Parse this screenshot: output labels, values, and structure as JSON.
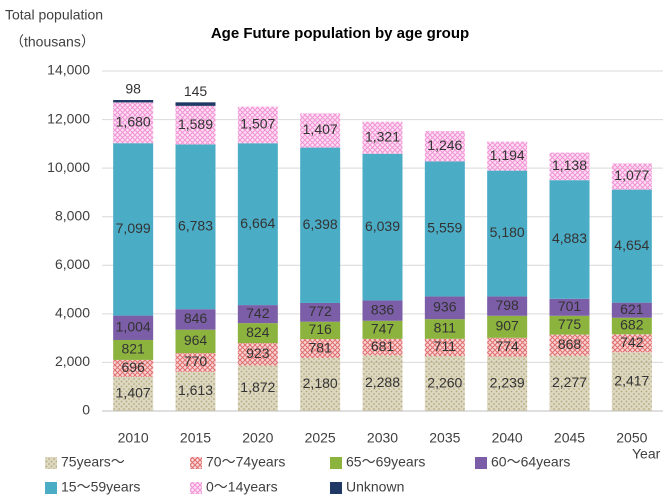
{
  "chart_data": {
    "type": "stacked_bar",
    "title": "Age Future population by age group",
    "ylabel": "Total population",
    "ylabel_unit": "（thousans）",
    "xlabel": "Year",
    "categories": [
      "2010",
      "2015",
      "2020",
      "2025",
      "2030",
      "2035",
      "2040",
      "2045",
      "2050"
    ],
    "series": [
      {
        "name": "75years〜",
        "color": "#b5a878",
        "hatch": "dots",
        "values": [
          1407,
          1613,
          1872,
          2180,
          2288,
          2260,
          2239,
          2277,
          2417
        ],
        "value_labels": [
          "1,407",
          "1,613",
          "1,872",
          "2,180",
          "2,288",
          "2,260",
          "2,239",
          "2,277",
          "2,417"
        ]
      },
      {
        "name": "70〜74years",
        "color": "#e06c6c",
        "hatch": "cross",
        "values": [
          696,
          770,
          923,
          781,
          681,
          711,
          774,
          868,
          742
        ]
      },
      {
        "name": "65〜69years",
        "color": "#8db33f",
        "values": [
          821,
          964,
          824,
          716,
          747,
          811,
          907,
          775,
          682
        ]
      },
      {
        "name": "60〜64years",
        "color": "#7b5ea7",
        "values": [
          1004,
          846,
          742,
          772,
          836,
          936,
          798,
          701,
          621
        ],
        "value_labels": [
          "1,004",
          "846",
          "742",
          "772",
          "836",
          "936",
          "798",
          "701",
          "621"
        ]
      },
      {
        "name": "15〜59years",
        "color": "#4bacc6",
        "values": [
          7099,
          6783,
          6664,
          6398,
          6039,
          5559,
          5180,
          4883,
          4654
        ],
        "value_labels": [
          "7,099",
          "6,783",
          "6,664",
          "6,398",
          "6,039",
          "5,559",
          "5,180",
          "4,883",
          "4,654"
        ]
      },
      {
        "name": "0〜14years",
        "color": "#f291d4",
        "hatch": "cross",
        "values": [
          1680,
          1589,
          1507,
          1407,
          1321,
          1246,
          1194,
          1138,
          1077
        ],
        "value_labels": [
          "1,680",
          "1,589",
          "1,507",
          "1,407",
          "1,321",
          "1,246",
          "1,194",
          "1,138",
          "1,077"
        ]
      },
      {
        "name": "Unknown",
        "color": "#1f3864",
        "values": [
          98,
          145,
          null,
          null,
          null,
          null,
          null,
          null,
          null
        ]
      }
    ],
    "ylim": [
      0,
      14000
    ],
    "yticks": [
      0,
      {
        "value": 2000,
        "label": "2,000"
      },
      {
        "value": 4000,
        "label": "4,000"
      },
      {
        "value": 6000,
        "label": "6,000"
      },
      {
        "value": 8000,
        "label": "8,000"
      },
      {
        "value": 10000,
        "label": "10,000"
      },
      {
        "value": 12000,
        "label": "12,000"
      },
      {
        "value": 14000,
        "label": "14,000"
      }
    ],
    "grid": true
  }
}
